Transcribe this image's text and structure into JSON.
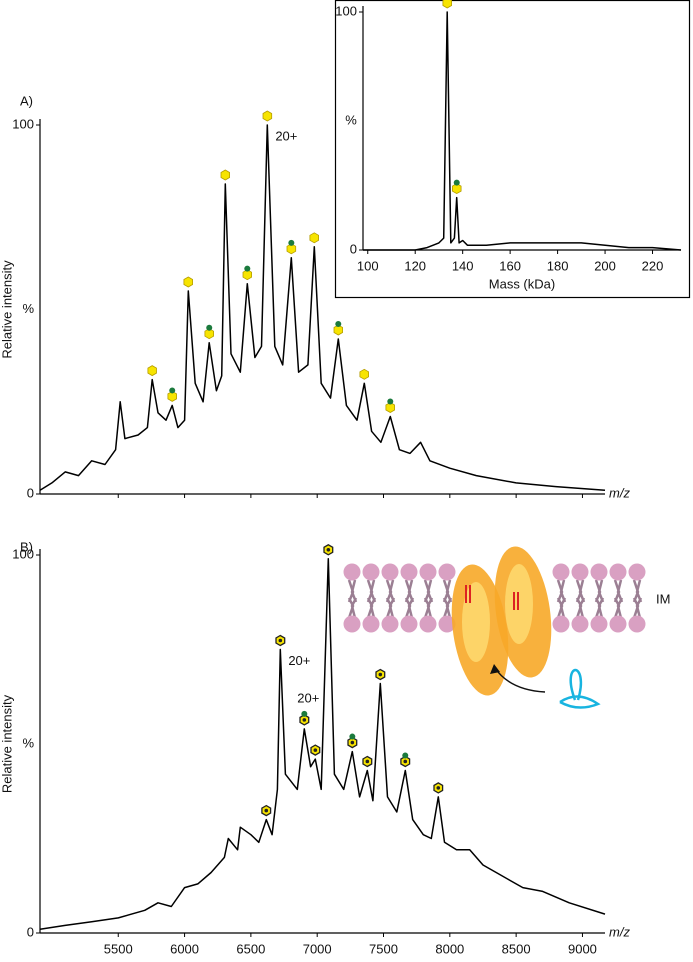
{
  "chart_data": [
    {
      "type": "line",
      "panel_label": "A)",
      "ylabel": "Relative intensity",
      "ymid_label": "%",
      "xlabel": "m/z",
      "color": "#000000",
      "xlim": [
        4910,
        9170
      ],
      "ylim": [
        0,
        100
      ],
      "yticks": [
        0,
        100
      ],
      "xticks": [
        5500,
        6000,
        6500,
        7000,
        7500,
        8000,
        8500,
        9000
      ],
      "xtick_labels": false,
      "x": [
        4910,
        5000,
        5100,
        5200,
        5300,
        5400,
        5480,
        5515,
        5550,
        5650,
        5720,
        5756,
        5800,
        5860,
        5907,
        5950,
        6000,
        6028,
        6080,
        6140,
        6186,
        6240,
        6280,
        6307,
        6350,
        6420,
        6473,
        6530,
        6580,
        6624,
        6680,
        6740,
        6805,
        6860,
        6930,
        6978,
        7030,
        7100,
        7159,
        7220,
        7300,
        7355,
        7410,
        7480,
        7551,
        7620,
        7700,
        7780,
        7850,
        8000,
        8200,
        8500,
        8800,
        9170
      ],
      "values": [
        1,
        3,
        6,
        5,
        9,
        8,
        12,
        25,
        15,
        16,
        18,
        31,
        22,
        20,
        24,
        18,
        20,
        55,
        30,
        25,
        41,
        28,
        32,
        84,
        38,
        33,
        57,
        37,
        40,
        100,
        40,
        35,
        64,
        33,
        35,
        67,
        30,
        26,
        42,
        24,
        20,
        30,
        17,
        14,
        21,
        12,
        11,
        14,
        9,
        7,
        5,
        3,
        2,
        1
      ],
      "markers": [
        {
          "x": 5756,
          "y": 31,
          "kind": "hex"
        },
        {
          "x": 5907,
          "y": 24,
          "kind": "hex-green"
        },
        {
          "x": 6028,
          "y": 55,
          "kind": "hex"
        },
        {
          "x": 6186,
          "y": 41,
          "kind": "hex-green"
        },
        {
          "x": 6307,
          "y": 84,
          "kind": "hex"
        },
        {
          "x": 6473,
          "y": 57,
          "kind": "hex-green"
        },
        {
          "x": 6624,
          "y": 100,
          "kind": "hex"
        },
        {
          "x": 6805,
          "y": 64,
          "kind": "hex-green"
        },
        {
          "x": 6978,
          "y": 67,
          "kind": "hex"
        },
        {
          "x": 7159,
          "y": 42,
          "kind": "hex-green"
        },
        {
          "x": 7355,
          "y": 30,
          "kind": "hex"
        },
        {
          "x": 7551,
          "y": 21,
          "kind": "hex-green"
        }
      ],
      "annotations": [
        {
          "text": "20+",
          "x": 6624,
          "y": 100,
          "side": "right"
        }
      ]
    },
    {
      "type": "line",
      "xlabel": "Mass (kDa)",
      "ymid_label": "%",
      "color": "#000000",
      "inset": true,
      "xlim": [
        98,
        232
      ],
      "ylim": [
        0,
        100
      ],
      "yticks": [
        0,
        100
      ],
      "xticks": [
        100,
        120,
        140,
        160,
        180,
        200,
        220
      ],
      "xtick_labels": true,
      "x": [
        98,
        120,
        125,
        130,
        132,
        133.5,
        135,
        136.5,
        137.5,
        138.5,
        140,
        142,
        150,
        160,
        170,
        180,
        190,
        200,
        210,
        220,
        232
      ],
      "values": [
        0,
        0,
        1,
        3,
        5,
        100,
        3,
        5,
        22,
        3,
        4,
        2,
        2,
        3,
        3,
        3,
        3,
        2,
        1,
        1,
        0
      ],
      "markers": [
        {
          "x": 133.5,
          "y": 100,
          "kind": "hex"
        },
        {
          "x": 137.5,
          "y": 22,
          "kind": "hex-green"
        }
      ]
    },
    {
      "type": "line",
      "panel_label": "B)",
      "ylabel": "Relative intensity",
      "ymid_label": "%",
      "xlabel": "m/z",
      "color": "#000000",
      "marker_ring": true,
      "xlim": [
        4910,
        9170
      ],
      "ylim": [
        0,
        100
      ],
      "yticks": [
        0,
        100
      ],
      "xticks": [
        5500,
        6000,
        6500,
        7000,
        7500,
        8000,
        8500,
        9000
      ],
      "xtick_labels": true,
      "x": [
        4910,
        5100,
        5300,
        5500,
        5700,
        5800,
        5900,
        6000,
        6100,
        6200,
        6300,
        6330,
        6400,
        6420,
        6500,
        6560,
        6616,
        6660,
        6700,
        6722,
        6760,
        6850,
        6903,
        6950,
        6986,
        7030,
        7084,
        7130,
        7200,
        7265,
        7320,
        7378,
        7420,
        7476,
        7530,
        7600,
        7664,
        7720,
        7800,
        7860,
        7913,
        7960,
        8050,
        8150,
        8250,
        8350,
        8450,
        8550,
        8700,
        8900,
        9170
      ],
      "values": [
        1,
        2,
        3,
        4,
        6,
        8,
        7,
        12,
        13,
        16,
        20,
        25,
        22,
        28,
        26,
        24,
        30,
        26,
        38,
        75,
        42,
        38,
        54,
        44,
        46,
        38,
        99,
        42,
        38,
        48,
        36,
        43,
        35,
        66,
        36,
        32,
        43,
        30,
        26,
        25,
        36,
        24,
        22,
        22,
        18,
        16,
        14,
        12,
        11,
        8,
        5
      ],
      "markers": [
        {
          "x": 6616,
          "y": 30,
          "kind": "hex"
        },
        {
          "x": 6722,
          "y": 75,
          "kind": "hex"
        },
        {
          "x": 6903,
          "y": 54,
          "kind": "hex-green"
        },
        {
          "x": 6986,
          "y": 46,
          "kind": "hex"
        },
        {
          "x": 7084,
          "y": 99,
          "kind": "hex"
        },
        {
          "x": 7265,
          "y": 48,
          "kind": "hex-green"
        },
        {
          "x": 7378,
          "y": 43,
          "kind": "hex"
        },
        {
          "x": 7476,
          "y": 66,
          "kind": "hex"
        },
        {
          "x": 7664,
          "y": 43,
          "kind": "hex-green"
        },
        {
          "x": 7913,
          "y": 36,
          "kind": "hex"
        }
      ],
      "annotations": [
        {
          "text": "20+",
          "x": 6722,
          "y": 75,
          "side": "right"
        },
        {
          "text": "20+",
          "x": 6903,
          "y": 54,
          "side": "above"
        }
      ]
    }
  ],
  "diagram": {
    "label": "IM"
  }
}
